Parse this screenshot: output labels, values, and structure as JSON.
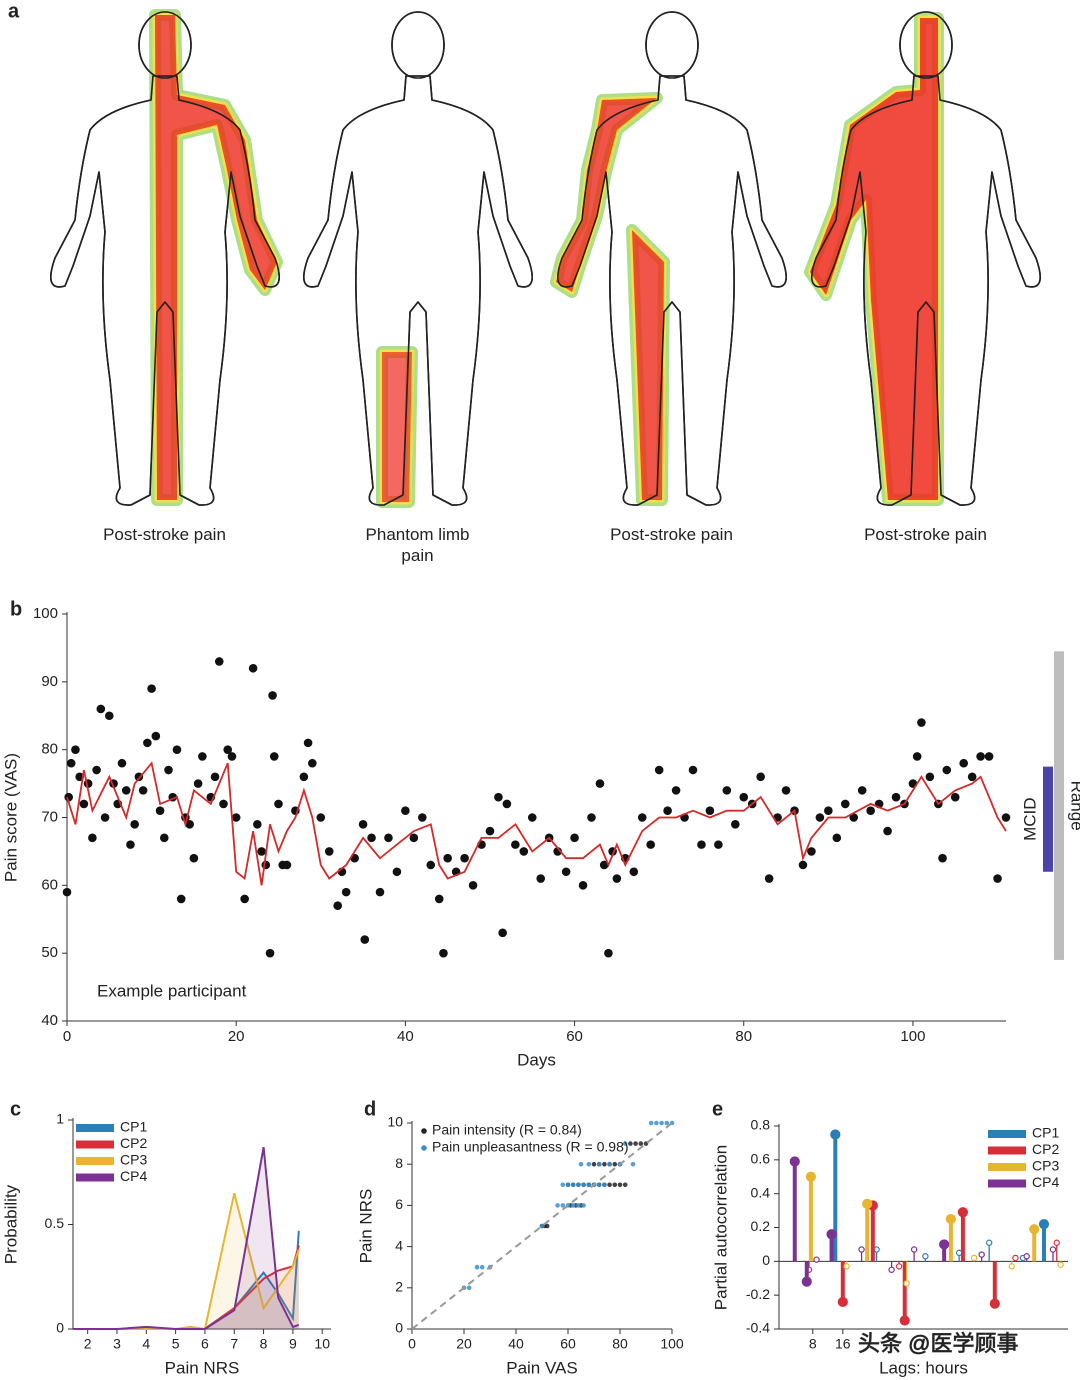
{
  "panel_a": {
    "label": "a",
    "captions": [
      "Post-stroke pain",
      "Phantom limb pain",
      "Post-stroke pain",
      "Post-stroke pain"
    ]
  },
  "chart_data": [
    {
      "type": "scatter",
      "label": "b",
      "xlabel": "Days",
      "ylabel": "Pain score (VAS)",
      "annotation": "Example participant",
      "xlim": [
        0,
        111
      ],
      "ylim": [
        40,
        100
      ],
      "xticks": [
        0,
        20,
        40,
        60,
        80,
        100
      ],
      "yticks": [
        40,
        50,
        60,
        70,
        80,
        90,
        100
      ],
      "series": [
        {
          "mode": "markers",
          "color": "#111111",
          "x": [
            0,
            0.2,
            0.5,
            1,
            1.5,
            2,
            2.5,
            3,
            3.5,
            4,
            4.5,
            5,
            5.5,
            6,
            6.5,
            7,
            7.5,
            8,
            8.5,
            9,
            9.5,
            10,
            10.5,
            11,
            11.5,
            12,
            12.5,
            13,
            13.5,
            14,
            14.5,
            15,
            15.5,
            16,
            17,
            17.5,
            18,
            18.5,
            19,
            19.5,
            20,
            21,
            22,
            22.5,
            23,
            23.5,
            24,
            24.3,
            24.5,
            25,
            25.5,
            26,
            27,
            28,
            28.5,
            29,
            30,
            31,
            32,
            32.5,
            33,
            34,
            35,
            35.2,
            36,
            37,
            38,
            39,
            40,
            41,
            42,
            43,
            44,
            44.5,
            45,
            46,
            47,
            48,
            49,
            50,
            51,
            51.5,
            52,
            53,
            54,
            55,
            56,
            57,
            58,
            59,
            60,
            61,
            62,
            63,
            63.5,
            64,
            64.5,
            65,
            66,
            67,
            68,
            69,
            70,
            71,
            72,
            73,
            74,
            75,
            76,
            77,
            78,
            79,
            80,
            81,
            82,
            83,
            84,
            85,
            86,
            87,
            88,
            89,
            90,
            91,
            92,
            93,
            94,
            95,
            96,
            97,
            98,
            99,
            100,
            100.5,
            101,
            102,
            103,
            103.5,
            104,
            105,
            106,
            107,
            108,
            109,
            110,
            111
          ],
          "values": [
            59,
            73,
            78,
            80,
            76,
            72,
            75,
            67,
            77,
            86,
            70,
            85,
            75,
            72,
            78,
            74,
            66,
            69,
            76,
            74,
            81,
            89,
            82,
            71,
            67,
            77,
            73,
            80,
            58,
            70,
            69,
            64,
            75,
            79,
            73,
            76,
            93,
            72,
            80,
            79,
            70,
            58,
            92,
            69,
            65,
            63,
            50,
            88,
            79,
            72,
            63,
            63,
            71,
            76,
            81,
            78,
            70,
            65,
            57,
            62,
            59,
            64,
            69,
            52,
            67,
            59,
            67,
            62,
            71,
            67,
            70,
            63,
            58,
            50,
            64,
            62,
            64,
            60,
            66,
            68,
            73,
            53,
            72,
            66,
            65,
            70,
            61,
            67,
            65,
            62,
            67,
            60,
            70,
            75,
            63,
            50,
            65,
            61,
            64,
            62,
            70,
            66,
            77,
            71,
            74,
            70,
            77,
            66,
            71,
            66,
            74,
            69,
            73,
            72,
            76,
            61,
            70,
            74,
            71,
            63,
            65,
            70,
            71,
            67,
            72,
            70,
            74,
            71,
            72,
            68,
            73,
            72,
            75,
            79,
            84,
            76,
            72,
            64,
            77,
            73,
            78,
            76,
            79,
            79,
            61,
            70
          ]
        },
        {
          "mode": "lines",
          "color": "#d42a2a",
          "x": [
            0,
            1,
            2,
            3,
            5,
            7,
            8,
            10,
            11,
            13,
            14,
            15,
            17,
            19,
            20,
            21,
            22,
            23,
            24,
            25,
            26,
            27,
            28,
            29,
            30,
            31,
            33,
            35,
            37,
            39,
            41,
            43,
            44,
            45,
            47,
            49,
            51,
            53,
            55,
            57,
            59,
            61,
            63,
            64,
            65,
            66,
            68,
            70,
            72,
            74,
            76,
            78,
            80,
            82,
            84,
            86,
            87,
            88,
            90,
            92,
            95,
            97,
            99,
            101,
            103,
            105,
            107,
            108,
            109,
            110,
            111
          ],
          "values": [
            73,
            69,
            77,
            71,
            76,
            70,
            75,
            78,
            72,
            73,
            69,
            74,
            72,
            78,
            62,
            61,
            68,
            60,
            69,
            65,
            68,
            70,
            74,
            70,
            63,
            61,
            63,
            67,
            64,
            66,
            68,
            69,
            63,
            61,
            62,
            67,
            67,
            69,
            65,
            67,
            64,
            64,
            66,
            63,
            66,
            63,
            68,
            70,
            70,
            71,
            70,
            71,
            71,
            73,
            69,
            71,
            64,
            67,
            70,
            70,
            72,
            71,
            72,
            76,
            72,
            74,
            75,
            76,
            73,
            70,
            68
          ]
        }
      ],
      "bands": [
        {
          "label": "MCID",
          "range": [
            62,
            77.5
          ],
          "color": "#4b44a8"
        },
        {
          "label": "Range",
          "range": [
            49,
            94.5
          ],
          "color": "#bdbdbd"
        }
      ]
    },
    {
      "type": "line",
      "label": "c",
      "xlabel": "Pain NRS",
      "ylabel": "Probability",
      "legend": "upper left",
      "xlim": [
        1.5,
        10.3
      ],
      "ylim": [
        0,
        1
      ],
      "xticks": [
        2,
        3,
        4,
        5,
        6,
        7,
        8,
        9,
        10
      ],
      "yticks": [
        0,
        0.5,
        1
      ],
      "x": [
        1.5,
        2,
        3,
        4,
        5,
        5.5,
        6,
        7,
        8,
        8.5,
        9,
        9.2
      ],
      "series": [
        {
          "name": "CP1",
          "color": "#2a7fb8",
          "values": [
            0,
            0,
            0,
            0,
            0,
            0,
            0,
            0.1,
            0.27,
            0.17,
            0.05,
            0.47
          ]
        },
        {
          "name": "CP2",
          "color": "#d62f3a",
          "values": [
            0,
            0,
            0,
            0,
            0,
            0,
            0,
            0.1,
            0.24,
            0.28,
            0.3,
            0.4
          ]
        },
        {
          "name": "CP3",
          "color": "#e8b530",
          "values": [
            0,
            0,
            0,
            0,
            0,
            0.01,
            0,
            0.65,
            0.1,
            0.2,
            0.3,
            0.38
          ]
        },
        {
          "name": "CP4",
          "color": "#7b3294",
          "values": [
            0,
            0,
            0,
            0.01,
            0,
            0,
            0,
            0.09,
            0.87,
            0.15,
            0.01,
            0.02
          ]
        }
      ]
    },
    {
      "type": "scatter",
      "label": "d",
      "xlabel": "Pain VAS",
      "ylabel": "Pain NRS",
      "legend": "upper left",
      "xlim": [
        0,
        100
      ],
      "ylim": [
        0,
        10
      ],
      "xticks": [
        0,
        20,
        40,
        60,
        80,
        100
      ],
      "yticks": [
        0,
        2,
        4,
        6,
        8,
        10
      ],
      "series": [
        {
          "name": "Pain intensity (R = 0.84)",
          "mode": "markers",
          "color": "#222222",
          "x": [
            50,
            51,
            52,
            60,
            62,
            64,
            66,
            68,
            70,
            72,
            74,
            76,
            78,
            80,
            82,
            70,
            72,
            74,
            76,
            78,
            80,
            84,
            86,
            88,
            90,
            61,
            63,
            65
          ],
          "values": [
            5,
            5,
            5,
            7,
            7,
            7,
            7,
            7,
            7,
            7,
            7,
            7,
            7,
            7,
            7,
            8,
            8,
            8,
            8,
            8,
            8,
            9,
            9,
            9,
            9,
            6,
            6,
            6
          ]
        },
        {
          "name": "Pain unpleasantness (R = 0.98)",
          "mode": "markers",
          "color": "#3b8fc8",
          "x": [
            20,
            22,
            25,
            27,
            30,
            50,
            56,
            58,
            60,
            62,
            64,
            66,
            58,
            60,
            62,
            64,
            66,
            68,
            70,
            72,
            74,
            65,
            68,
            72,
            76,
            80,
            85,
            82,
            92,
            94,
            96,
            98,
            100
          ],
          "values": [
            2,
            2,
            3,
            3,
            3,
            5,
            6,
            6,
            6,
            6,
            6,
            6,
            7,
            7,
            7,
            7,
            7,
            7,
            7,
            7,
            7,
            8,
            8,
            8,
            8,
            8,
            8,
            9,
            10,
            10,
            10,
            10,
            10
          ]
        }
      ]
    },
    {
      "type": "stem",
      "label": "e",
      "xlabel": "Lags: hours",
      "ylabel": "Partial autocorrelation",
      "legend": "upper right",
      "xlim": [
        -1,
        76
      ],
      "ylim": [
        -0.4,
        0.8
      ],
      "xticks": [
        8,
        16
      ],
      "yticks": [
        -0.4,
        -0.2,
        0,
        0.2,
        0.4,
        0.6,
        0.8
      ],
      "series": [
        {
          "name": "CP1",
          "color": "#2a7fb8",
          "x": [
            14,
            25,
            38,
            47,
            55,
            64,
            69.6
          ],
          "values": [
            0.75,
            0.07,
            0.03,
            0.05,
            0.11,
            0.02,
            0.22
          ],
          "filled": [
            true,
            false,
            false,
            false,
            false,
            false,
            true
          ]
        },
        {
          "name": "CP2",
          "color": "#d62f3a",
          "x": [
            7,
            16,
            24,
            31,
            32.5,
            48,
            56.5,
            62,
            73
          ],
          "values": [
            -0.05,
            -0.24,
            0.33,
            -0.03,
            -0.35,
            0.29,
            -0.25,
            0.02,
            0.11
          ],
          "filled": [
            false,
            true,
            true,
            false,
            true,
            true,
            true,
            false,
            false
          ]
        },
        {
          "name": "CP3",
          "color": "#e8b530",
          "x": [
            7.5,
            17,
            22.5,
            33,
            44.8,
            51,
            61,
            67,
            74
          ],
          "values": [
            0.5,
            -0.03,
            0.34,
            -0.13,
            0.25,
            0.02,
            -0.03,
            0.19,
            -0.02
          ],
          "filled": [
            true,
            false,
            true,
            false,
            true,
            false,
            false,
            true,
            false
          ]
        },
        {
          "name": "CP4",
          "color": "#7b3294",
          "x": [
            3.2,
            6.4,
            9,
            13,
            21,
            29,
            35,
            43,
            53,
            65,
            72
          ],
          "values": [
            0.59,
            -0.12,
            0.01,
            0.16,
            0.07,
            -0.05,
            0.07,
            0.1,
            0.04,
            0.03,
            0.07
          ],
          "filled": [
            true,
            true,
            false,
            true,
            false,
            false,
            false,
            true,
            false,
            false,
            false
          ]
        }
      ]
    }
  ],
  "watermark": "头条 @医学顾事"
}
